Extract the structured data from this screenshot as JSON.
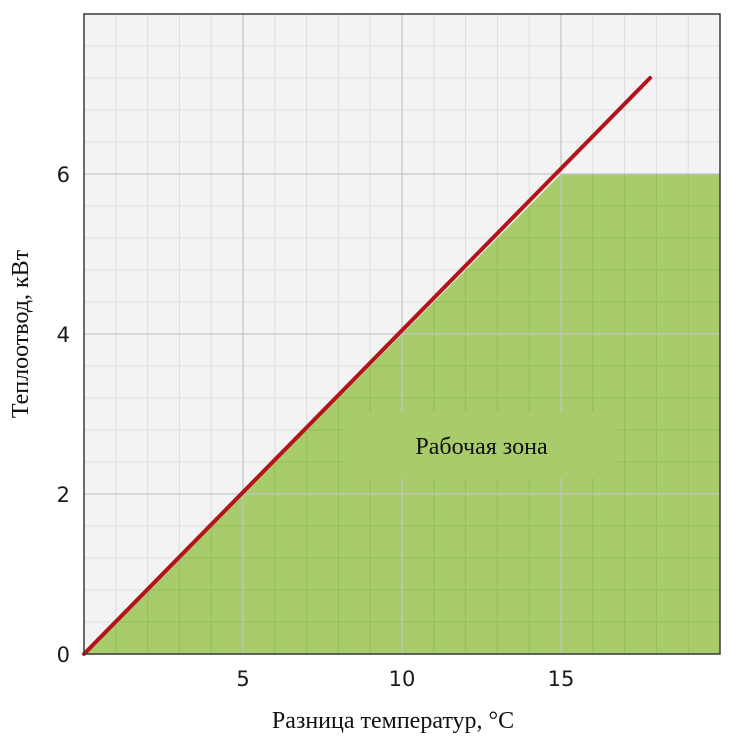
{
  "chart_data": {
    "type": "line",
    "xlabel": "Разница температур, °C",
    "ylabel": "Теплоотвод, кВт",
    "xlim": [
      0,
      20
    ],
    "ylim": [
      0,
      8
    ],
    "x_ticks": [
      "5",
      "10",
      "15"
    ],
    "x_tick_values": [
      5,
      10,
      15
    ],
    "y_ticks": [
      "0",
      "2",
      "4",
      "6"
    ],
    "y_tick_values": [
      0,
      2,
      4,
      6
    ],
    "grid": true,
    "series": [
      {
        "x": [
          0,
          17.8
        ],
        "y": [
          0,
          7.2
        ],
        "color": "#b3141c"
      }
    ],
    "area": {
      "x": [
        0,
        15,
        20,
        20
      ],
      "y": [
        0,
        6,
        6,
        0
      ],
      "color": "#a8cc6c"
    },
    "annotation": {
      "text": "Рабочая зона",
      "x": 12.5,
      "y": 2.6
    },
    "colors": {
      "background": "#f3f3f3",
      "grid": "#dddddd",
      "major_grid": "#c4c4c4"
    }
  }
}
